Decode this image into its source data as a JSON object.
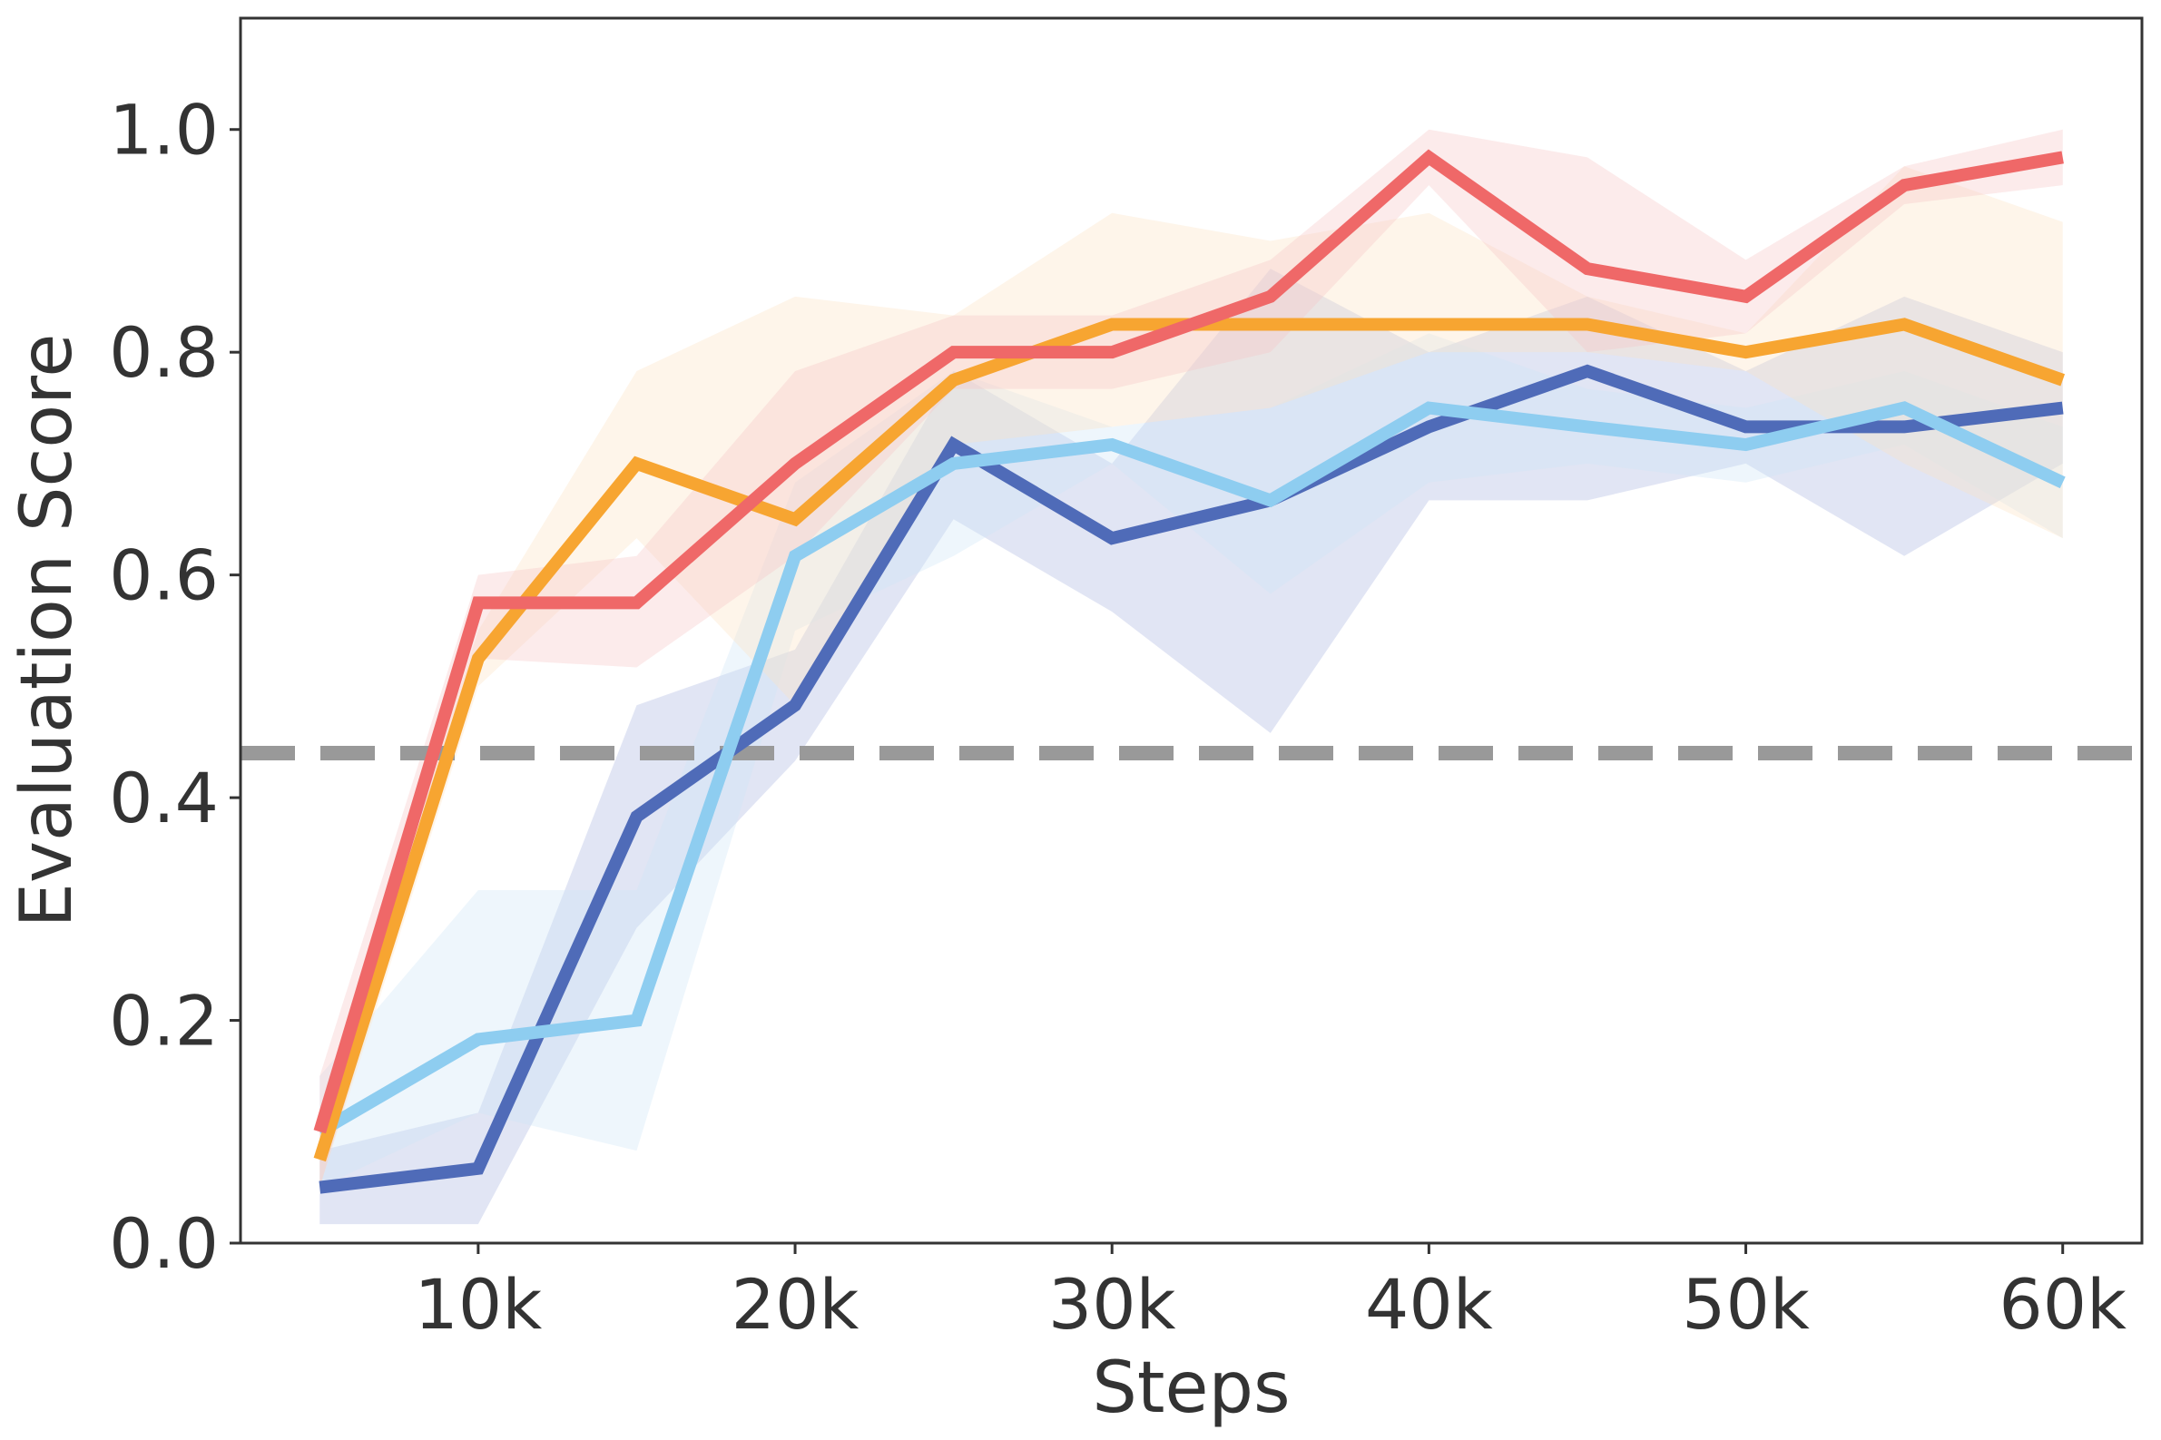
{
  "chart_data": {
    "type": "line",
    "title": "",
    "xlabel": "Steps",
    "ylabel": "Evaluation Score",
    "xlim": [
      2500,
      62500
    ],
    "ylim": [
      0,
      1.1
    ],
    "xticks": [
      10000,
      20000,
      30000,
      40000,
      50000,
      60000
    ],
    "xtick_labels": [
      "10k",
      "20k",
      "30k",
      "40k",
      "50k",
      "60k"
    ],
    "yticks": [
      0,
      0.2,
      0.4,
      0.6,
      0.8,
      1.0
    ],
    "ytick_labels": [
      "0.0",
      "0.2",
      "0.4",
      "0.6",
      "0.8",
      "1.0"
    ],
    "grid": false,
    "legend": null,
    "x": [
      5000,
      10000,
      15000,
      20000,
      25000,
      30000,
      35000,
      40000,
      45000,
      50000,
      55000,
      60000
    ],
    "series": [
      {
        "color": "#a8b4e0",
        "line_color": "#4f6bb8",
        "values": [
          0.05,
          0.067,
          0.383,
          0.483,
          0.717,
          0.633,
          0.667,
          0.733,
          0.783,
          0.733,
          0.733,
          0.75
        ],
        "lower": [
          0.017,
          0.017,
          0.283,
          0.433,
          0.65,
          0.567,
          0.458,
          0.667,
          0.667,
          0.7,
          0.617,
          0.7
        ],
        "upper": [
          0.083,
          0.117,
          0.483,
          0.533,
          0.783,
          0.7,
          0.875,
          0.8,
          0.85,
          0.783,
          0.85,
          0.8
        ]
      },
      {
        "color": "#cfe6f7",
        "line_color": "#8ecdf0",
        "values": [
          0.1,
          0.183,
          0.2,
          0.617,
          0.7,
          0.717,
          0.667,
          0.75,
          0.733,
          0.717,
          0.75,
          0.683
        ],
        "lower": [
          0.05,
          0.117,
          0.083,
          0.55,
          0.617,
          0.7,
          0.583,
          0.683,
          0.7,
          0.683,
          0.717,
          0.633
        ],
        "upper": [
          0.15,
          0.317,
          0.317,
          0.683,
          0.783,
          0.733,
          0.75,
          0.817,
          0.767,
          0.75,
          0.783,
          0.733
        ]
      },
      {
        "color": "#fde3c4",
        "line_color": "#f7a531",
        "values": [
          0.075,
          0.525,
          0.7,
          0.65,
          0.775,
          0.825,
          0.825,
          0.825,
          0.825,
          0.8,
          0.825,
          0.775
        ],
        "lower": [
          0.05,
          0.5,
          0.633,
          0.483,
          0.717,
          0.733,
          0.75,
          0.8,
          0.8,
          0.783,
          0.7,
          0.633
        ],
        "upper": [
          0.1,
          0.55,
          0.783,
          0.85,
          0.833,
          0.925,
          0.9,
          0.925,
          0.85,
          0.817,
          0.967,
          0.917
        ]
      },
      {
        "color": "#f7c6c6",
        "line_color": "#ef6868",
        "values": [
          0.1,
          0.575,
          0.575,
          0.7,
          0.8,
          0.8,
          0.85,
          0.975,
          0.875,
          0.85,
          0.95,
          0.975
        ],
        "lower": [
          0.05,
          0.525,
          0.517,
          0.617,
          0.767,
          0.767,
          0.8,
          0.95,
          0.8,
          0.817,
          0.933,
          0.95
        ],
        "upper": [
          0.15,
          0.6,
          0.617,
          0.783,
          0.833,
          0.833,
          0.883,
          1.0,
          0.975,
          0.883,
          0.967,
          1.0
        ]
      }
    ],
    "reference_line": {
      "y": 0.44,
      "color": "#999999",
      "style": "dashed"
    }
  }
}
